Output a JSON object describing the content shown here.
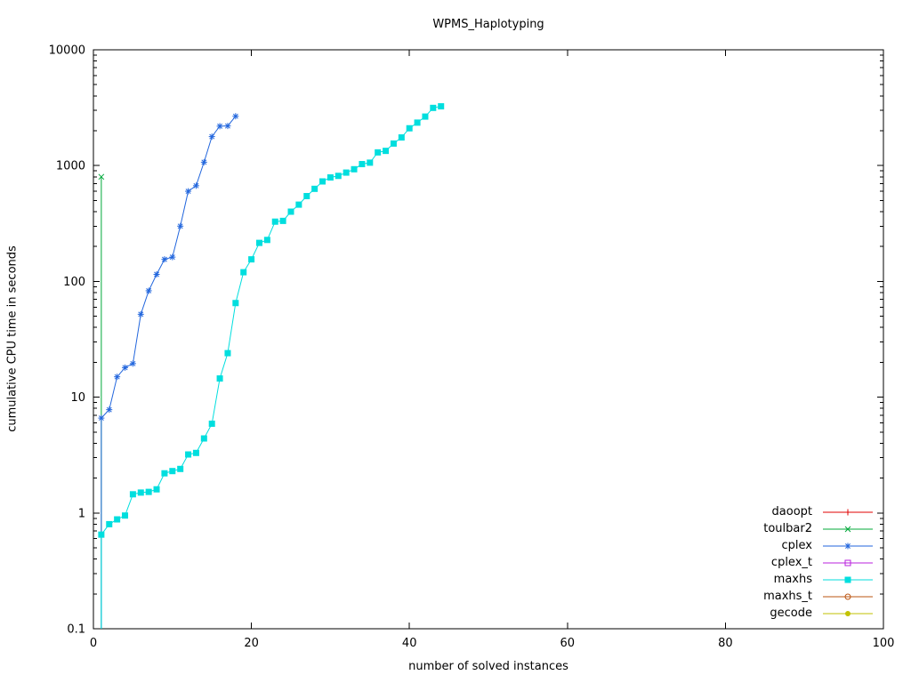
{
  "chart_data": {
    "type": "line",
    "title": "WPMS_Haplotyping",
    "xlabel": "number of solved instances",
    "ylabel": "cumulative CPU time in seconds",
    "xlim": [
      0,
      100
    ],
    "ylim": [
      0.1,
      10000
    ],
    "y_log_scale": true,
    "grid": false,
    "legend_position": "bottom-right-inside",
    "x_ticks": [
      0,
      20,
      40,
      60,
      80,
      100
    ],
    "y_ticks": [
      0.1,
      1,
      10,
      100,
      1000,
      10000
    ],
    "y_tick_labels": [
      "0.1",
      "1",
      "10",
      "100",
      "1000",
      "10000"
    ],
    "series": [
      {
        "name": "daoopt",
        "color": "#e00000",
        "marker": "plus",
        "drop_line": false,
        "points": []
      },
      {
        "name": "toulbar2",
        "color": "#00a83a",
        "marker": "cross",
        "drop_line": true,
        "points": [
          [
            1,
            800
          ]
        ]
      },
      {
        "name": "cplex",
        "color": "#2266dd",
        "marker": "asterisk",
        "drop_line": true,
        "points": [
          [
            1,
            6.6
          ],
          [
            2,
            7.8
          ],
          [
            3,
            15
          ],
          [
            4,
            18
          ],
          [
            5,
            19.5
          ],
          [
            6,
            52
          ],
          [
            7,
            83
          ],
          [
            8,
            115
          ],
          [
            9,
            155
          ],
          [
            10,
            162
          ],
          [
            11,
            300
          ],
          [
            12,
            600
          ],
          [
            13,
            670
          ],
          [
            14,
            1070
          ],
          [
            15,
            1780
          ],
          [
            16,
            2190
          ],
          [
            17,
            2200
          ],
          [
            18,
            2670
          ]
        ]
      },
      {
        "name": "cplex_t",
        "color": "#b822dd",
        "marker": "open-square",
        "drop_line": false,
        "points": []
      },
      {
        "name": "maxhs",
        "color": "#00dede",
        "marker": "filled-square",
        "drop_line": true,
        "points": [
          [
            1,
            0.65
          ],
          [
            2,
            0.8
          ],
          [
            3,
            0.88
          ],
          [
            4,
            0.95
          ],
          [
            5,
            1.45
          ],
          [
            6,
            1.5
          ],
          [
            7,
            1.52
          ],
          [
            8,
            1.6
          ],
          [
            9,
            2.2
          ],
          [
            10,
            2.3
          ],
          [
            11,
            2.4
          ],
          [
            12,
            3.2
          ],
          [
            13,
            3.3
          ],
          [
            14,
            4.4
          ],
          [
            15,
            5.9
          ],
          [
            16,
            14.5
          ],
          [
            17,
            24
          ],
          [
            18,
            65
          ],
          [
            19,
            120
          ],
          [
            20,
            155
          ],
          [
            21,
            215
          ],
          [
            22,
            228
          ],
          [
            23,
            328
          ],
          [
            24,
            333
          ],
          [
            25,
            400
          ],
          [
            26,
            460
          ],
          [
            27,
            545
          ],
          [
            28,
            630
          ],
          [
            29,
            730
          ],
          [
            30,
            790
          ],
          [
            31,
            815
          ],
          [
            32,
            870
          ],
          [
            33,
            930
          ],
          [
            34,
            1030
          ],
          [
            35,
            1060
          ],
          [
            36,
            1300
          ],
          [
            37,
            1340
          ],
          [
            38,
            1550
          ],
          [
            39,
            1750
          ],
          [
            40,
            2100
          ],
          [
            41,
            2350
          ],
          [
            42,
            2650
          ],
          [
            43,
            3150
          ],
          [
            44,
            3250
          ]
        ]
      },
      {
        "name": "maxhs_t",
        "color": "#bb5511",
        "marker": "open-circle",
        "drop_line": false,
        "points": []
      },
      {
        "name": "gecode",
        "color": "#c2c200",
        "marker": "filled-circle",
        "drop_line": false,
        "points": []
      }
    ]
  }
}
